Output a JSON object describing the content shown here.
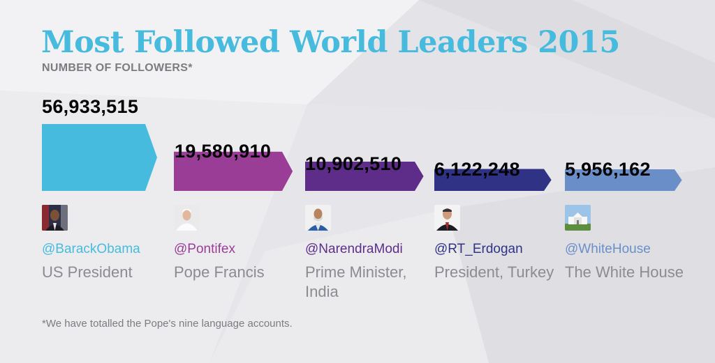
{
  "title": "Most Followed World Leaders 2015",
  "subtitle": "NUMBER OF FOLLOWERS*",
  "footnote": "*We have totalled the Pope's nine language accounts.",
  "chart_data": {
    "type": "bar",
    "orientation": "horizontal-arrow",
    "title": "Most Followed World Leaders 2015",
    "subtitle": "NUMBER OF FOLLOWERS*",
    "categories": [
      "@BarackObama",
      "@Pontifex",
      "@NarendraModi",
      "@RT_Erdogan",
      "@WhiteHouse"
    ],
    "values": [
      56933515,
      19580910,
      10902510,
      6122248,
      5956162
    ],
    "value_labels": [
      "56,933,515",
      "19,580,910",
      "10,902,510",
      "6,122,248",
      "5,956,162"
    ],
    "roles": [
      "US President",
      "Pope Francis",
      "Prime Minister, India",
      "President, Turkey",
      "The White House"
    ],
    "colors": [
      "#47bbdd",
      "#9a3d97",
      "#5e2d8a",
      "#2f3285",
      "#6a8fc8"
    ],
    "avatar_icons": [
      "obama-photo",
      "pope-francis-photo",
      "modi-photo",
      "erdogan-photo",
      "white-house-photo"
    ]
  }
}
